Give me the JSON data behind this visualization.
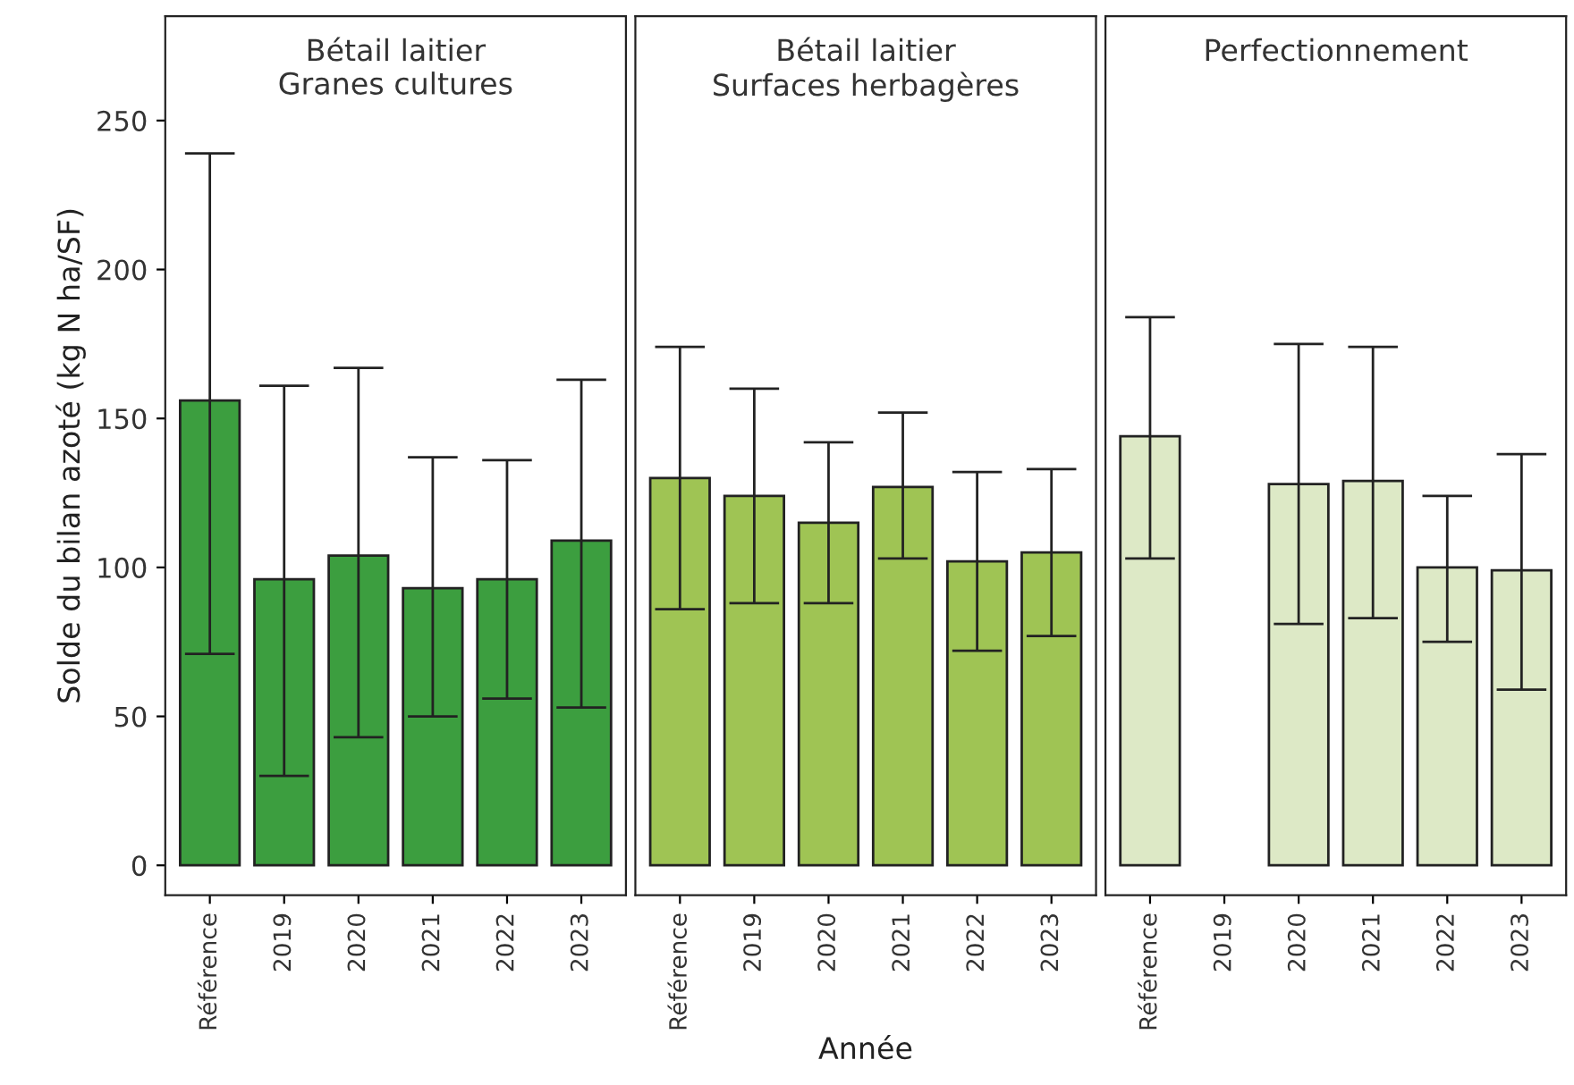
{
  "chart_data": [
    {
      "type": "bar",
      "title": "Bétail laitier\nGranes cultures",
      "ylabel": "Solde du bilan azoté (kg N ha/SF)",
      "categories": [
        "Référence",
        "2019",
        "2020",
        "2021",
        "2022",
        "2023"
      ],
      "series": [
        {
          "color": "#3c9e3f",
          "values": [
            156,
            96,
            104,
            93,
            96,
            109
          ],
          "errors": [
            [
              71,
              239
            ],
            [
              30,
              161
            ],
            [
              43,
              167
            ],
            [
              50,
              137
            ],
            [
              56,
              136
            ],
            [
              53,
              163
            ]
          ]
        }
      ],
      "ylim": [
        -10,
        285
      ],
      "yticks": [
        0,
        50,
        100,
        150,
        200,
        250
      ],
      "grid": false,
      "legend": false
    },
    {
      "type": "bar",
      "title": "Bétail laitier\nSurfaces herbagères",
      "xlabel": "Année",
      "categories": [
        "Référence",
        "2019",
        "2020",
        "2021",
        "2022",
        "2023"
      ],
      "series": [
        {
          "color": "#9fc454",
          "values": [
            130,
            124,
            115,
            127,
            102,
            105
          ],
          "errors": [
            [
              86,
              174
            ],
            [
              88,
              160
            ],
            [
              88,
              142
            ],
            [
              103,
              152
            ],
            [
              72,
              132
            ],
            [
              77,
              133
            ]
          ]
        }
      ],
      "ylim": [
        -10,
        285
      ],
      "yticks": [
        0,
        50,
        100,
        150,
        200,
        250
      ],
      "tick_labels": "x",
      "grid": false,
      "legend": false
    },
    {
      "type": "bar",
      "title": "Perfectionnement",
      "categories": [
        "Référence",
        "2019",
        "2020",
        "2021",
        "2022",
        "2023"
      ],
      "series": [
        {
          "color": "#dde9c6",
          "values": [
            144,
            null,
            128,
            129,
            100,
            99
          ],
          "errors": [
            [
              103,
              184
            ],
            null,
            [
              81,
              175
            ],
            [
              83,
              174
            ],
            [
              75,
              124
            ],
            [
              59,
              138
            ]
          ]
        }
      ],
      "ylim": [
        -10,
        285
      ],
      "yticks": [
        0,
        50,
        100,
        150,
        200,
        250
      ],
      "tick_labels": "x",
      "grid": false,
      "legend": false
    }
  ]
}
